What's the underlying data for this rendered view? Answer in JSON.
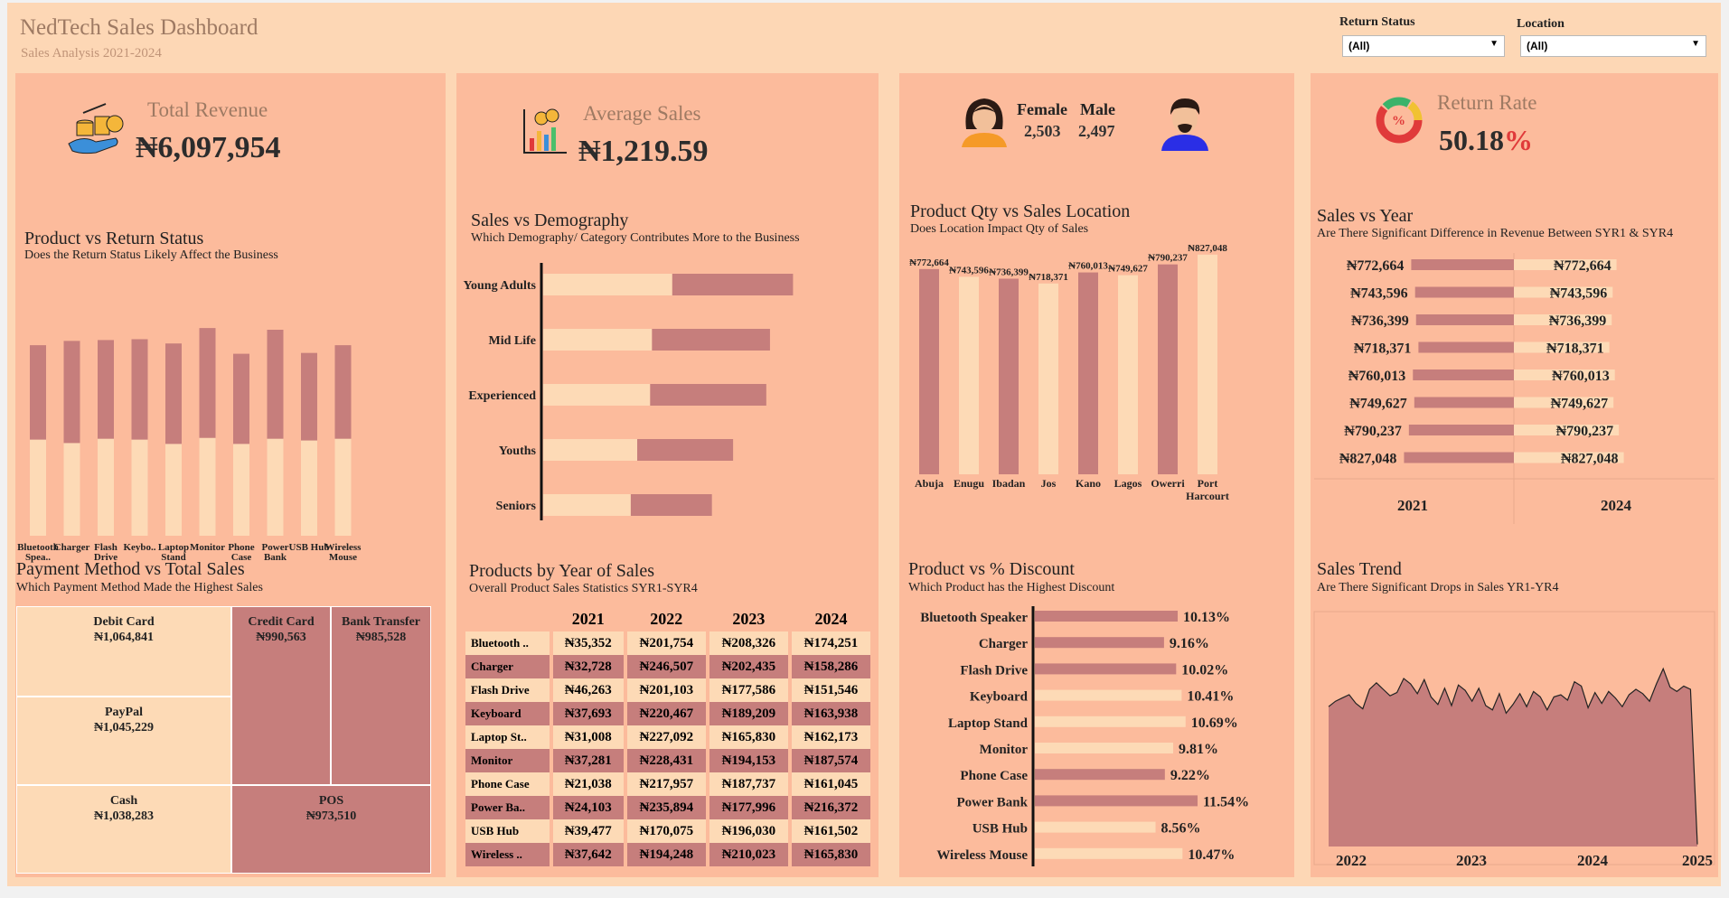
{
  "header": {
    "title": "NedTech Sales Dashboard",
    "subtitle": "Sales Analysis 2021-2024"
  },
  "filters": [
    {
      "label": "Return Status",
      "value": "(All)"
    },
    {
      "label": "Location",
      "value": "(All)"
    }
  ],
  "kpis": {
    "total_revenue": {
      "label": "Total Revenue",
      "value": "₦6,097,954"
    },
    "average_sales": {
      "label": "Average Sales",
      "value": "₦1,219.59"
    },
    "gender": {
      "female_label": "Female",
      "female_value": "2,503",
      "male_label": "Male",
      "male_value": "2,497"
    },
    "return_rate": {
      "label": "Return Rate",
      "value": "50.18",
      "unit": "%"
    }
  },
  "colors": {
    "background": "#fdd7b5",
    "panel": "#fcbb9c",
    "dark_series": "#c67e7c",
    "light_series": "#fddab6",
    "accent_red": "#e03a3a"
  },
  "chart_data": [
    {
      "type": "bar",
      "id": "product_return",
      "title": "Product vs Return Status",
      "subtitle": "Does the Return Status Likely Affect the Business",
      "categories": [
        "Bluetooth Spea..",
        "Charger",
        "Flash Drive",
        "Keybo..",
        "Laptop Stand",
        "Monitor",
        "Phone Case",
        "Power Bank",
        "USB Hub",
        "Wireless Mouse"
      ],
      "series": [
        {
          "values": [
            112,
            108,
            113,
            112,
            107,
            114,
            107,
            113,
            111,
            113
          ]
        },
        {
          "values": [
            110,
            119,
            115,
            117,
            117,
            128,
            105,
            127,
            102,
            109
          ]
        }
      ],
      "stacked": true
    },
    {
      "type": "bar",
      "id": "sales_demography",
      "title": "Sales vs Demography",
      "subtitle": "Which Demography/ Category Contributes More to the Business",
      "orientation": "horizontal",
      "categories": [
        "Young Adults",
        "Mid Life",
        "Experienced",
        "Youths",
        "Seniors"
      ],
      "series": [
        {
          "values": [
            140,
            118,
            116,
            102,
            95
          ]
        },
        {
          "values": [
            131,
            128,
            126,
            104,
            88
          ]
        }
      ],
      "stacked": true
    },
    {
      "type": "bar",
      "id": "qty_location",
      "title": "Product Qty vs Sales Location",
      "subtitle": "Does Location Impact Qty of Sales",
      "categories": [
        "Abuja",
        "Enugu",
        "Ibadan",
        "Jos",
        "Kano",
        "Lagos",
        "Owerri",
        "Port Harcourt"
      ],
      "values": [
        772664,
        743596,
        736399,
        718371,
        760013,
        749627,
        790237,
        827048
      ],
      "labels": [
        "₦772,664",
        "₦743,596",
        "₦736,399",
        "₦718,371",
        "₦760,013",
        "₦749,627",
        "₦790,237",
        "₦827,048"
      ]
    },
    {
      "type": "bar",
      "id": "sales_year",
      "title": "Sales vs Year",
      "subtitle": "Are There Significant Difference in Revenue Between SYR1 & SYR4",
      "orientation": "horizontal",
      "columns": [
        "2021",
        "2024"
      ],
      "values": [
        772664,
        743596,
        736399,
        718371,
        760013,
        749627,
        790237,
        827048
      ],
      "labels": [
        "₦772,664",
        "₦743,596",
        "₦736,399",
        "₦718,371",
        "₦760,013",
        "₦749,627",
        "₦790,237",
        "₦827,048"
      ]
    },
    {
      "type": "table",
      "id": "payment",
      "title": "Payment Method vs Total Sales",
      "subtitle": "Which Payment Method Made the Highest Sales",
      "items": [
        {
          "name": "Debit Card",
          "value": "₦1,064,841"
        },
        {
          "name": "PayPal",
          "value": "₦1,045,229"
        },
        {
          "name": "Cash",
          "value": "₦1,038,283"
        },
        {
          "name": "Credit Card",
          "value": "₦990,563"
        },
        {
          "name": "Bank Transfer",
          "value": "₦985,528"
        },
        {
          "name": "POS",
          "value": "₦973,510"
        }
      ]
    },
    {
      "type": "table",
      "id": "products_year",
      "title": "Products by Year of Sales",
      "subtitle": "Overall Product Sales Statistics SYR1-SYR4",
      "columns": [
        "2021",
        "2022",
        "2023",
        "2024"
      ],
      "rows": [
        [
          "Bluetooth ..",
          "₦35,352",
          "₦201,754",
          "₦208,326",
          "₦174,251"
        ],
        [
          "Charger",
          "₦32,728",
          "₦246,507",
          "₦202,435",
          "₦158,286"
        ],
        [
          "Flash Drive",
          "₦46,263",
          "₦201,103",
          "₦177,586",
          "₦151,546"
        ],
        [
          "Keyboard",
          "₦37,693",
          "₦220,467",
          "₦189,209",
          "₦163,938"
        ],
        [
          "Laptop St..",
          "₦31,008",
          "₦227,092",
          "₦165,830",
          "₦162,173"
        ],
        [
          "Monitor",
          "₦37,281",
          "₦228,431",
          "₦194,153",
          "₦187,574"
        ],
        [
          "Phone Case",
          "₦21,038",
          "₦217,957",
          "₦187,737",
          "₦161,045"
        ],
        [
          "Power Ba..",
          "₦24,103",
          "₦235,894",
          "₦177,996",
          "₦216,372"
        ],
        [
          "USB Hub",
          "₦39,477",
          "₦170,075",
          "₦196,030",
          "₦161,502"
        ],
        [
          "Wireless ..",
          "₦37,642",
          "₦194,248",
          "₦210,023",
          "₦165,830"
        ]
      ]
    },
    {
      "type": "bar",
      "id": "discount",
      "title": "Product vs % Discount",
      "subtitle": "Which Product has the Highest Discount",
      "orientation": "horizontal",
      "categories": [
        "Bluetooth Speaker",
        "Charger",
        "Flash Drive",
        "Keyboard",
        "Laptop Stand",
        "Monitor",
        "Phone Case",
        "Power Bank",
        "USB Hub",
        "Wireless Mouse"
      ],
      "values": [
        10.13,
        9.16,
        10.02,
        10.41,
        10.69,
        9.81,
        9.22,
        11.54,
        8.56,
        10.47
      ],
      "labels": [
        "10.13%",
        "9.16%",
        "10.02%",
        "10.41%",
        "10.69%",
        "9.81%",
        "9.22%",
        "11.54%",
        "8.56%",
        "10.47%"
      ],
      "dark": [
        true,
        true,
        true,
        false,
        false,
        false,
        true,
        true,
        false,
        false
      ]
    },
    {
      "type": "area",
      "id": "trend",
      "title": "Sales Trend",
      "subtitle": "Are There Significant Drops in Sales YR1-YR4",
      "x_ticks": [
        "2022",
        "2023",
        "2024",
        "2025"
      ],
      "values": [
        129,
        134,
        137,
        140,
        132,
        127,
        145,
        151,
        145,
        139,
        142,
        155,
        150,
        141,
        154,
        138,
        131,
        146,
        130,
        149,
        144,
        134,
        146,
        130,
        126,
        141,
        123,
        131,
        141,
        129,
        143,
        138,
        126,
        138,
        140,
        135,
        152,
        148,
        128,
        142,
        132,
        143,
        137,
        129,
        140,
        145,
        141,
        134,
        150,
        164,
        147,
        143,
        148,
        145,
        2
      ]
    }
  ]
}
